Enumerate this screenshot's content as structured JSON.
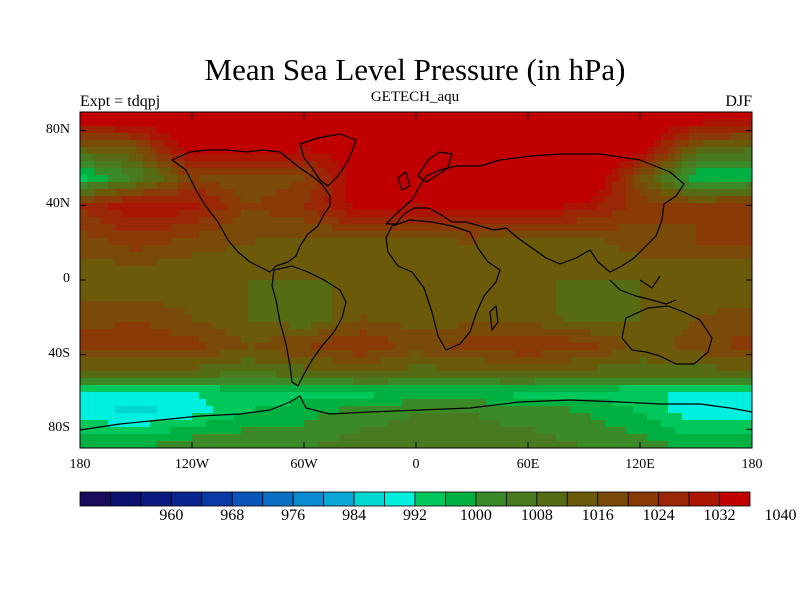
{
  "title": "Mean Sea Level Pressure (in hPa)",
  "subtitle": "GETECH_aqu",
  "left_label": "Expt = tdqpj",
  "right_label": "DJF",
  "chart_data": {
    "type": "heatmap",
    "variable": "Mean Sea Level Pressure",
    "units": "hPa",
    "projection": "cylindrical equidistant",
    "xlim": [
      -180,
      180
    ],
    "ylim": [
      -90,
      90
    ],
    "x_ticks": [
      {
        "value": -180,
        "label": "180"
      },
      {
        "value": -120,
        "label": "120W"
      },
      {
        "value": -60,
        "label": "60W"
      },
      {
        "value": 0,
        "label": "0"
      },
      {
        "value": 60,
        "label": "60E"
      },
      {
        "value": 120,
        "label": "120E"
      },
      {
        "value": 180,
        "label": "180"
      }
    ],
    "y_ticks": [
      {
        "value": 80,
        "label": "80N"
      },
      {
        "value": 40,
        "label": "40N"
      },
      {
        "value": 0,
        "label": "0"
      },
      {
        "value": -40,
        "label": "40S"
      },
      {
        "value": -80,
        "label": "80S"
      }
    ],
    "colorbar": {
      "colors": [
        "#1a0a5c",
        "#0b0f6e",
        "#0a1a80",
        "#0a2590",
        "#0a3aa6",
        "#0a55b8",
        "#0a70c4",
        "#0a8ad0",
        "#0aa7d8",
        "#00d7d0",
        "#00f0e0",
        "#00c85a",
        "#00b040",
        "#3a8a28",
        "#4a7a20",
        "#556b14",
        "#6b5a0a",
        "#7a4a08",
        "#8a3a06",
        "#9a2806",
        "#aa1504",
        "#c00000"
      ],
      "tick_labels": [
        "960",
        "968",
        "976",
        "984",
        "992",
        "1000",
        "1008",
        "1016",
        "1024",
        "1032",
        "1040"
      ],
      "tick_values": [
        960,
        968,
        976,
        984,
        992,
        1000,
        1008,
        1016,
        1024,
        1032,
        1040
      ]
    },
    "fields": [
      {
        "lat": 90,
        "values": [
          1040,
          1040,
          1040,
          1040,
          1040,
          1040,
          1040,
          1040,
          1040,
          1040,
          1040,
          1040,
          1040
        ]
      },
      {
        "lat": 70,
        "values": [
          1012,
          1016,
          1036,
          1036,
          1032,
          1036,
          1040,
          1044,
          1044,
          1040,
          1036,
          1012,
          1008
        ]
      },
      {
        "lat": 55,
        "values": [
          994,
          1004,
          1020,
          1016,
          1020,
          1036,
          1040,
          1044,
          1044,
          1044,
          1016,
          996,
          996
        ]
      },
      {
        "lat": 40,
        "values": [
          1024,
          1032,
          1030,
          1020,
          1024,
          1034,
          1032,
          1036,
          1036,
          1030,
          1022,
          1020,
          1024
        ]
      },
      {
        "lat": 20,
        "values": [
          1018,
          1022,
          1018,
          1016,
          1014,
          1014,
          1014,
          1016,
          1012,
          1014,
          1018,
          1020,
          1020
        ]
      },
      {
        "lat": 0,
        "values": [
          1012,
          1012,
          1012,
          1012,
          1012,
          1012,
          1012,
          1012,
          1012,
          1012,
          1012,
          1012,
          1012
        ]
      },
      {
        "lat": -20,
        "values": [
          1018,
          1020,
          1016,
          1012,
          1008,
          1016,
          1014,
          1014,
          1014,
          1010,
          1012,
          1016,
          1018
        ]
      },
      {
        "lat": -35,
        "values": [
          1022,
          1022,
          1022,
          1016,
          1020,
          1024,
          1018,
          1022,
          1024,
          1022,
          1014,
          1018,
          1022
        ]
      },
      {
        "lat": -50,
        "values": [
          1010,
          1010,
          1010,
          1008,
          1010,
          1012,
          1010,
          1010,
          1012,
          1010,
          1010,
          1010,
          1010
        ]
      },
      {
        "lat": -60,
        "values": [
          992,
          992,
          992,
          994,
          994,
          994,
          996,
          996,
          994,
          994,
          992,
          992,
          992
        ]
      },
      {
        "lat": -70,
        "values": [
          990,
          986,
          990,
          996,
          998,
          1002,
          1004,
          1004,
          1002,
          1000,
          996,
          988,
          990
        ]
      },
      {
        "lat": -90,
        "values": [
          1000,
          1000,
          1004,
          1004,
          1004,
          1006,
          1006,
          1006,
          1006,
          1004,
          1002,
          1000,
          1000
        ]
      }
    ]
  }
}
